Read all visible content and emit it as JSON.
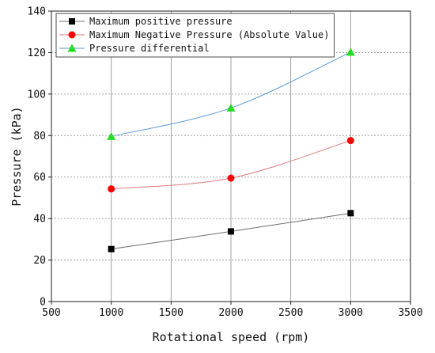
{
  "chart_data": {
    "type": "line",
    "xlabel": "Rotational speed (rpm)",
    "ylabel": "Pressure (kPa)",
    "xlim": [
      500,
      3500
    ],
    "ylim": [
      0,
      140
    ],
    "xticks": [
      500,
      1000,
      1500,
      2000,
      2500,
      3000,
      3500
    ],
    "yticks": [
      0,
      20,
      40,
      60,
      80,
      100,
      120,
      140
    ],
    "grid": true,
    "legend_position": "top-left",
    "x": [
      1000,
      2000,
      3000
    ],
    "series": [
      {
        "name": "Maximum positive pressure",
        "values": [
          25.3,
          33.8,
          42.6
        ],
        "marker": "square",
        "marker_color": "#000000",
        "line_color": "#6e6e6e"
      },
      {
        "name": "Maximum Negative Pressure (Absolute Value)",
        "values": [
          54.3,
          59.5,
          77.6
        ],
        "marker": "circle",
        "marker_color": "#ff0000",
        "line_color": "#e07a7a"
      },
      {
        "name": "Pressure differential",
        "values": [
          79.6,
          93.3,
          120.2
        ],
        "marker": "triangle",
        "marker_color": "#22dd22",
        "line_color": "#5b9bd5"
      }
    ]
  }
}
